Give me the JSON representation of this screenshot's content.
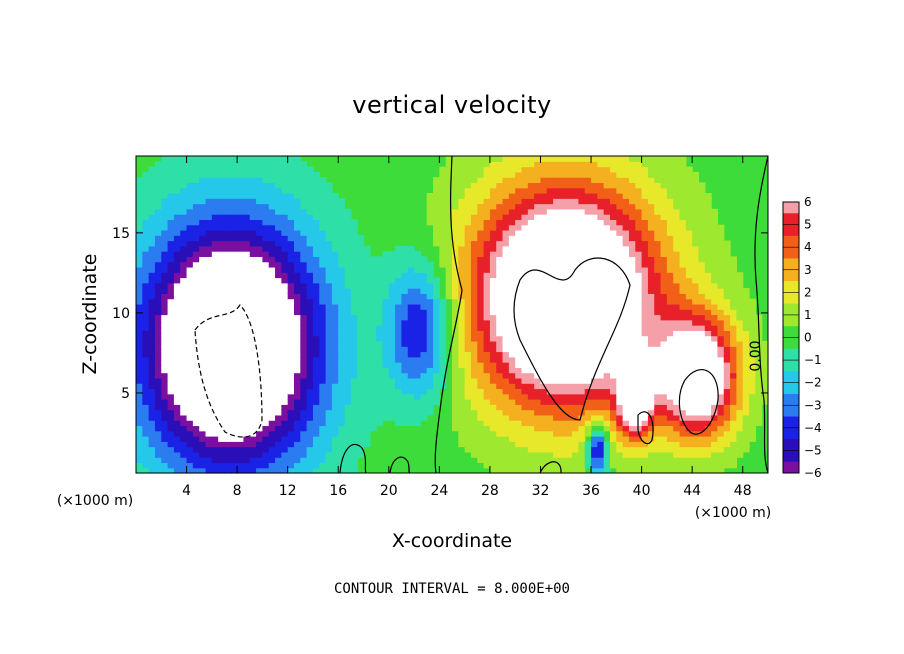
{
  "chart_data": {
    "type": "heatmap",
    "title": "vertical velocity",
    "xlabel": "X-coordinate",
    "ylabel": "Z-coordinate",
    "x_unit": "(×1000 m)",
    "x_ticks": [
      4,
      8,
      12,
      16,
      20,
      24,
      28,
      32,
      36,
      40,
      44,
      48
    ],
    "y_ticks": [
      5,
      10,
      15
    ],
    "xlim": [
      0,
      50
    ],
    "ylim": [
      0,
      19.8
    ],
    "colorbar": {
      "ticks": [
        6,
        5,
        4,
        3,
        2,
        1,
        0,
        -1,
        -2,
        -3,
        -4,
        -5,
        -6
      ],
      "min": -6,
      "max": 6
    },
    "contour_interval_text": "CONTOUR INTERVAL = 8.000E+00",
    "contour_label": "0.00",
    "features": [
      {
        "kind": "updraft",
        "x": 34,
        "z": 11,
        "rx": 7,
        "rz": 6.5,
        "w": 12
      },
      {
        "kind": "updraft",
        "x": 44.5,
        "z": 6,
        "rx": 3,
        "rz": 3.5,
        "w": 9
      },
      {
        "kind": "updraft",
        "x": 39.5,
        "z": 4.5,
        "rx": 1.3,
        "rz": 2.2,
        "w": 7
      },
      {
        "kind": "downdraft",
        "x": 7.5,
        "z": 8,
        "rx": 6.5,
        "rz": 7,
        "w": -12
      },
      {
        "kind": "downdraft",
        "x": 22.5,
        "z": 9,
        "rx": 2.5,
        "rz": 4,
        "w": -5
      },
      {
        "kind": "downdraft",
        "x": 36.5,
        "z": 1.5,
        "rx": 0.8,
        "rz": 1.5,
        "w": -6
      }
    ],
    "grid": false
  }
}
